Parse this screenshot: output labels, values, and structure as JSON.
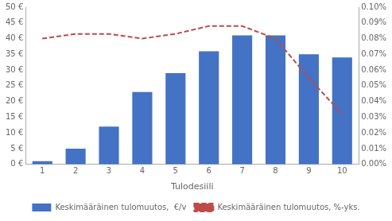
{
  "chart_data": {
    "type": "bar",
    "xlabel": "Tulodesiili",
    "categories": [
      1,
      2,
      3,
      4,
      5,
      6,
      7,
      8,
      9,
      10
    ],
    "series": [
      {
        "name": "Keskimääräinen tulomuutos,  €/v",
        "type": "bar",
        "color": "#4472C4",
        "values": [
          1,
          5,
          12,
          23,
          29,
          36,
          41,
          41,
          35,
          34
        ]
      },
      {
        "name": "Keskimääräinen tulomuutos, %-yks.",
        "type": "line",
        "color": "#BE4B48",
        "line_style": "dashed",
        "axis": "y2",
        "values": [
          0.0008,
          0.00083,
          0.00083,
          0.0008,
          0.00083,
          0.00088,
          0.00088,
          0.0008,
          0.00055,
          0.00032
        ]
      }
    ],
    "ylim": [
      0,
      50
    ],
    "yticks": [
      {
        "value": 0,
        "label": "0 €"
      },
      {
        "value": 5,
        "label": "5 €"
      },
      {
        "value": 10,
        "label": "10 €"
      },
      {
        "value": 15,
        "label": "15 €"
      },
      {
        "value": 20,
        "label": "20 €"
      },
      {
        "value": 25,
        "label": "25 €"
      },
      {
        "value": 30,
        "label": "30 €"
      },
      {
        "value": 35,
        "label": "35 €"
      },
      {
        "value": 40,
        "label": "40 €"
      },
      {
        "value": 45,
        "label": "45 €"
      },
      {
        "value": 50,
        "label": "50 €"
      }
    ],
    "y2lim": [
      0,
      0.001
    ],
    "y2ticks": [
      {
        "value": 0.0,
        "label": "0.00%"
      },
      {
        "value": 0.0001,
        "label": "0.01%"
      },
      {
        "value": 0.0002,
        "label": "0.02%"
      },
      {
        "value": 0.0003,
        "label": "0.03%"
      },
      {
        "value": 0.0004,
        "label": "0.04%"
      },
      {
        "value": 0.0005,
        "label": "0.05%"
      },
      {
        "value": 0.0006,
        "label": "0.06%"
      },
      {
        "value": 0.0007,
        "label": "0.07%"
      },
      {
        "value": 0.0008,
        "label": "0.08%"
      },
      {
        "value": 0.0009,
        "label": "0.09%"
      },
      {
        "value": 0.001,
        "label": "0.10%"
      }
    ],
    "grid": false,
    "legend": "bottom"
  }
}
